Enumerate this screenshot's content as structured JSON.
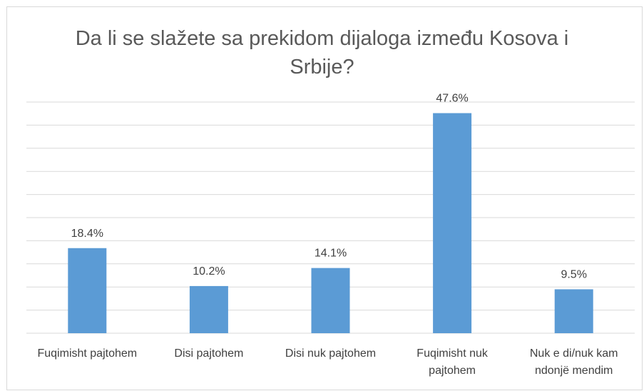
{
  "chart_data": {
    "type": "bar",
    "title": "Da li se slažete sa prekidom dijaloga između Kosova i Srbije?",
    "categories": [
      "Fuqimisht pajtohem",
      "Disi pajtohem",
      "Disi nuk pajtohem",
      "Fuqimisht nuk pajtohem",
      "Nuk e di/nuk kam ndonjë mendim"
    ],
    "values": [
      18.4,
      10.2,
      14.1,
      47.6,
      9.5
    ],
    "value_labels": [
      "18.4%",
      "10.2%",
      "14.1%",
      "47.6%",
      "9.5%"
    ],
    "color": "#5b9bd5",
    "ylim": [
      0,
      50
    ],
    "yticks": [
      0,
      5,
      10,
      15,
      20,
      25,
      30,
      35,
      40,
      45,
      50
    ],
    "grid": true
  }
}
